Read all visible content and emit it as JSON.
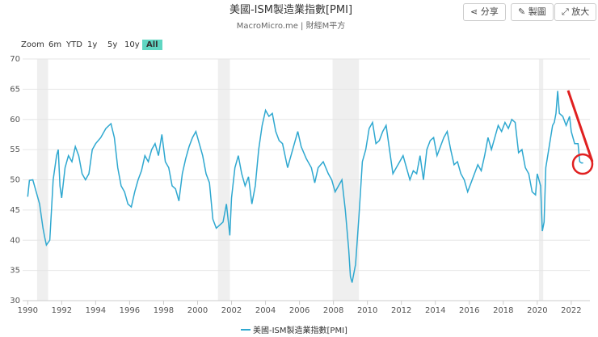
{
  "chart_data": {
    "type": "line",
    "title": "美國-ISM製造業指數[PMI]",
    "subtitle": "MacroMicro.me | 財經M平方",
    "buttons": [
      "分享",
      "製圖",
      "放大"
    ],
    "zoom_label": "Zoom",
    "zoom_options": [
      "6m",
      "YTD",
      "1y",
      "5y",
      "10y",
      "All"
    ],
    "xlim": [
      1989.7,
      2023.1
    ],
    "xticks": [
      1990,
      1992,
      1994,
      1996,
      1998,
      2000,
      2002,
      2004,
      2006,
      2008,
      2010,
      2012,
      2014,
      2016,
      2018,
      2020,
      2022
    ],
    "ylim": [
      30,
      70
    ],
    "yticks": [
      30,
      35,
      40,
      45,
      50,
      55,
      60,
      65,
      70
    ],
    "grid": true,
    "bands": [
      [
        1990.55,
        1991.2
      ],
      [
        2001.2,
        2001.9
      ],
      [
        2007.95,
        2009.5
      ],
      [
        2020.1,
        2020.35
      ]
    ],
    "x": [
      1990.0,
      1990.1,
      1990.3,
      1990.5,
      1990.7,
      1990.9,
      1991.0,
      1991.1,
      1991.3,
      1991.5,
      1991.7,
      1991.8,
      1991.9,
      1992.0,
      1992.2,
      1992.4,
      1992.6,
      1992.8,
      1993.0,
      1993.2,
      1993.4,
      1993.6,
      1993.8,
      1994.0,
      1994.3,
      1994.6,
      1994.9,
      1995.1,
      1995.3,
      1995.5,
      1995.7,
      1995.9,
      1996.1,
      1996.3,
      1996.5,
      1996.7,
      1996.9,
      1997.1,
      1997.3,
      1997.5,
      1997.7,
      1997.9,
      1998.1,
      1998.3,
      1998.5,
      1998.7,
      1998.9,
      1999.1,
      1999.3,
      1999.5,
      1999.7,
      1999.9,
      2000.1,
      2000.3,
      2000.5,
      2000.7,
      2000.9,
      2001.1,
      2001.3,
      2001.5,
      2001.7,
      2001.9,
      2002.0,
      2002.2,
      2002.4,
      2002.6,
      2002.8,
      2003.0,
      2003.2,
      2003.4,
      2003.6,
      2003.8,
      2004.0,
      2004.2,
      2004.4,
      2004.6,
      2004.8,
      2005.0,
      2005.3,
      2005.6,
      2005.9,
      2006.1,
      2006.4,
      2006.7,
      2006.9,
      2007.1,
      2007.4,
      2007.7,
      2007.9,
      2008.1,
      2008.3,
      2008.5,
      2008.7,
      2008.9,
      2009.0,
      2009.1,
      2009.3,
      2009.5,
      2009.7,
      2009.9,
      2010.1,
      2010.3,
      2010.5,
      2010.7,
      2010.9,
      2011.1,
      2011.3,
      2011.5,
      2011.7,
      2011.9,
      2012.1,
      2012.3,
      2012.5,
      2012.7,
      2012.9,
      2013.1,
      2013.3,
      2013.5,
      2013.7,
      2013.9,
      2014.1,
      2014.3,
      2014.5,
      2014.7,
      2014.9,
      2015.1,
      2015.3,
      2015.5,
      2015.7,
      2015.9,
      2016.1,
      2016.3,
      2016.5,
      2016.7,
      2016.9,
      2017.1,
      2017.3,
      2017.5,
      2017.7,
      2017.9,
      2018.1,
      2018.3,
      2018.5,
      2018.7,
      2018.9,
      2019.1,
      2019.3,
      2019.5,
      2019.7,
      2019.9,
      2020.0,
      2020.2,
      2020.3,
      2020.4,
      2020.5,
      2020.7,
      2020.9,
      2021.0,
      2021.1,
      2021.2,
      2021.3,
      2021.5,
      2021.7,
      2021.9,
      2022.0,
      2022.2,
      2022.4,
      2022.5,
      2022.6,
      2022.7
    ],
    "series": [
      {
        "name": "美國-ISM製造業指數[PMI]",
        "color": "#2fa8d0",
        "values": [
          47.2,
          49.9,
          50,
          48,
          46,
          42,
          40.5,
          39.2,
          40,
          50,
          54,
          55,
          49,
          47,
          52,
          54,
          53,
          55.5,
          54,
          51,
          50,
          51,
          55,
          56,
          57,
          58.5,
          59.3,
          57,
          52,
          49,
          48,
          46,
          45.5,
          48,
          50,
          51.5,
          54,
          53,
          55,
          56,
          54,
          57.5,
          53,
          52,
          49,
          48.5,
          46.5,
          51,
          53.5,
          55.5,
          57,
          58,
          56,
          54,
          51,
          49.5,
          43.5,
          42,
          42.5,
          43,
          46,
          40.8,
          47,
          52,
          54,
          51,
          49,
          50.5,
          46,
          49,
          55,
          59,
          61.5,
          60.5,
          61,
          58,
          56.5,
          56,
          52,
          55,
          58,
          55.5,
          53.5,
          52,
          49.5,
          52,
          53,
          51,
          50,
          48,
          49,
          50,
          45,
          38.5,
          34,
          33,
          36,
          44,
          53,
          55,
          58.5,
          59.5,
          56,
          56.5,
          58,
          59,
          55,
          51,
          52,
          53,
          54,
          52,
          50,
          51.5,
          51,
          54,
          50,
          55,
          56.5,
          57,
          54,
          55.5,
          57,
          58,
          55,
          52.5,
          53,
          51,
          50,
          48,
          49.5,
          51,
          52.5,
          51.5,
          54,
          57,
          55,
          57,
          59,
          58,
          59.5,
          58.5,
          60,
          59.5,
          54.5,
          55,
          52,
          51,
          48,
          47.5,
          51,
          49,
          41.5,
          43,
          52,
          55.5,
          59,
          59.5,
          61,
          64.7,
          61,
          60.5,
          59,
          60.5,
          58,
          56,
          56,
          53,
          52.8,
          52.8
        ]
      }
    ]
  }
}
